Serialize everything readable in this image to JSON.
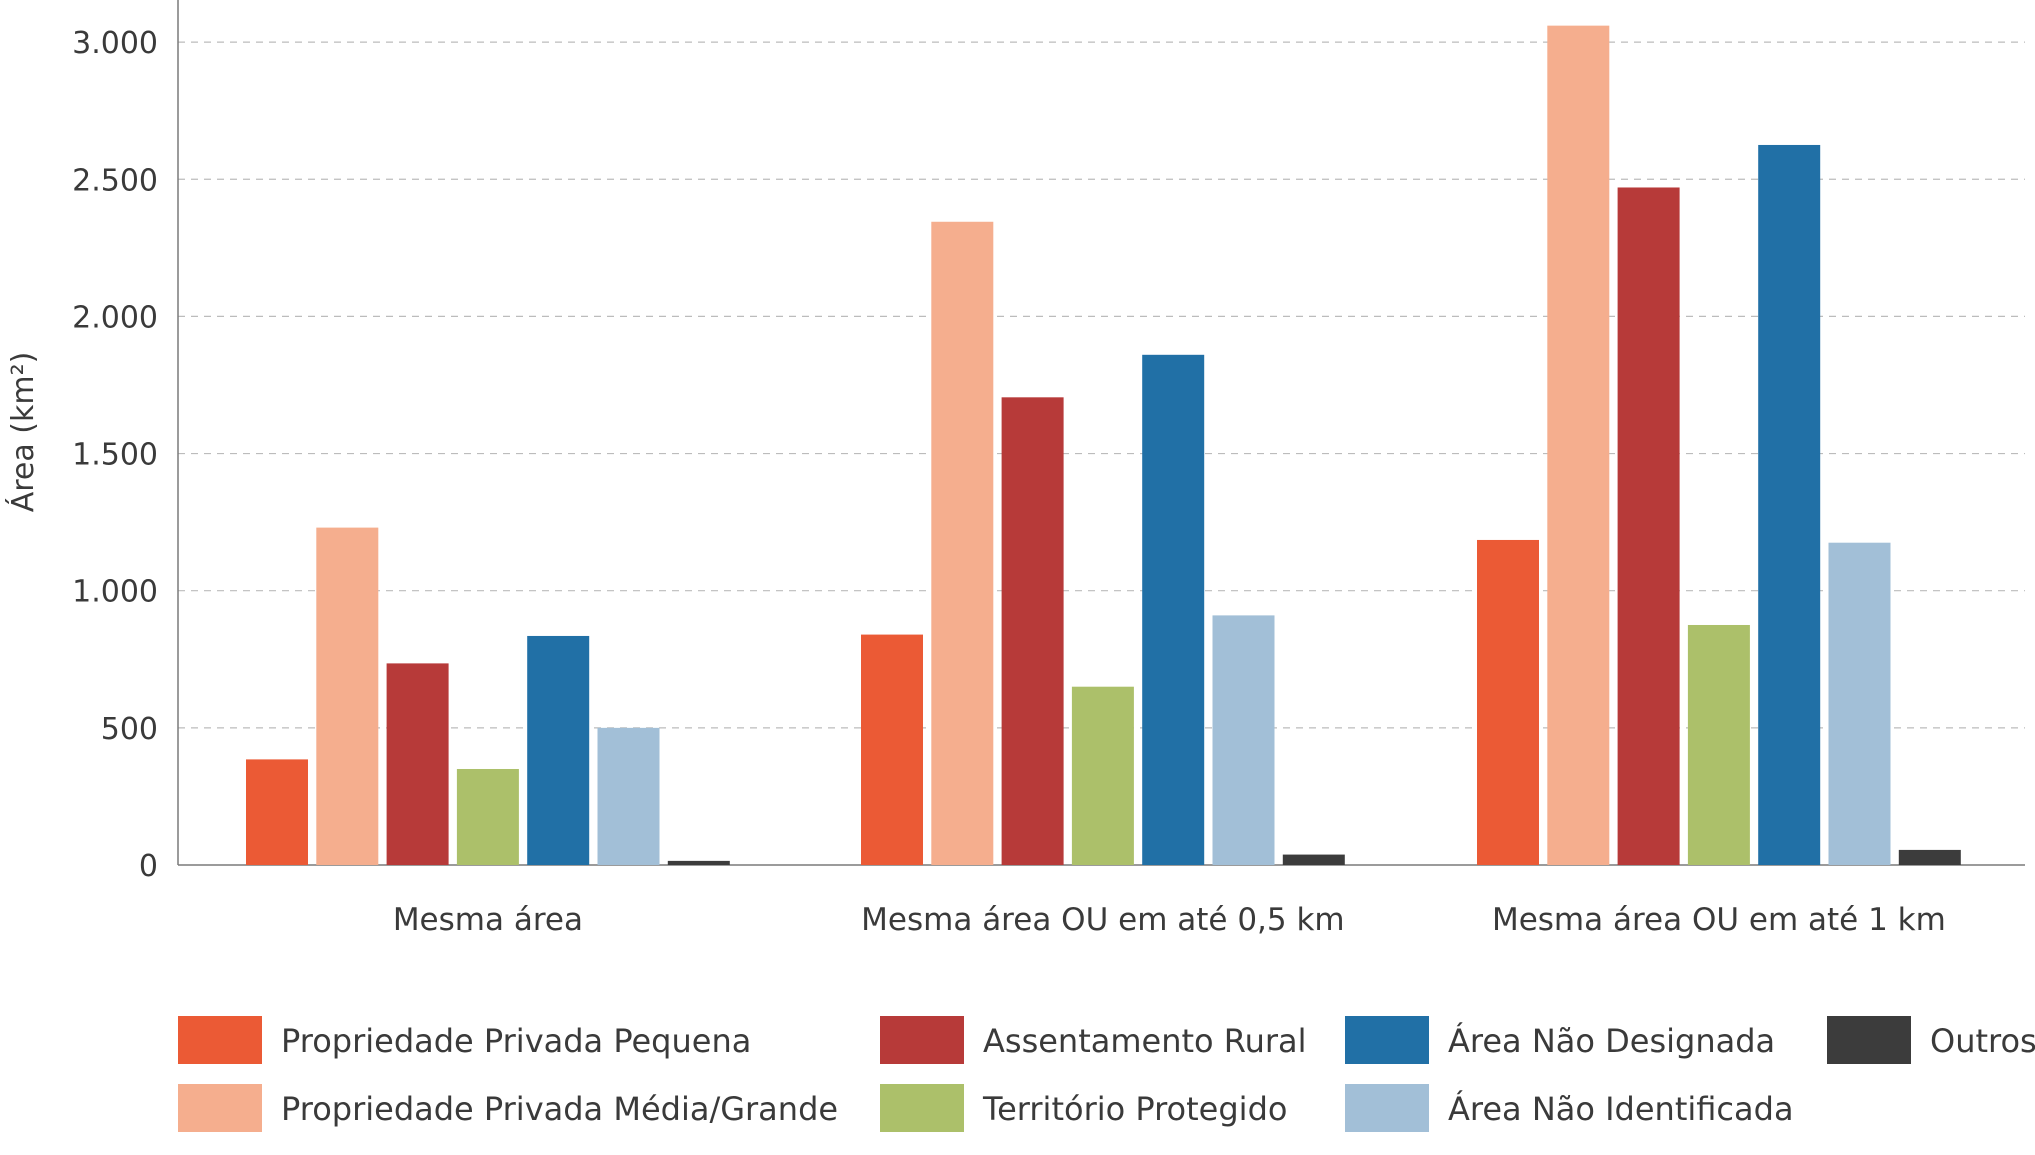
{
  "chart_data": {
    "type": "bar",
    "categories": [
      "Mesma área",
      "Mesma área OU em até 0,5 km",
      "Mesma área OU em até 1 km"
    ],
    "ylabel": "Área (km²)",
    "xlabel": "",
    "ylim": [
      0,
      3100
    ],
    "yticks": [
      {
        "value": 0,
        "label": "0"
      },
      {
        "value": 500,
        "label": "500"
      },
      {
        "value": 1000,
        "label": "1.000"
      },
      {
        "value": 1500,
        "label": "1.500"
      },
      {
        "value": 2000,
        "label": "2.000"
      },
      {
        "value": 2500,
        "label": "2.500"
      },
      {
        "value": 3000,
        "label": "3.000"
      }
    ],
    "grid": true,
    "legend_position": "bottom",
    "series": [
      {
        "name": "Propriedade Privada Pequena",
        "color": "#eb5a35",
        "values": [
          385,
          840,
          1185
        ]
      },
      {
        "name": "Propriedade Privada Média/Grande",
        "color": "#f5ae8e",
        "values": [
          1230,
          2345,
          3060
        ]
      },
      {
        "name": "Assentamento Rural",
        "color": "#b73a39",
        "values": [
          735,
          1705,
          2470
        ]
      },
      {
        "name": "Território Protegido",
        "color": "#acc06a",
        "values": [
          350,
          650,
          875
        ]
      },
      {
        "name": "Área Não Designada",
        "color": "#2170a6",
        "values": [
          835,
          1860,
          2625
        ]
      },
      {
        "name": "Área Não Identificada",
        "color": "#a2bfd7",
        "values": [
          500,
          910,
          1175
        ]
      },
      {
        "name": "Outros",
        "color": "#3c3c3c",
        "values": [
          15,
          38,
          55
        ]
      }
    ]
  }
}
